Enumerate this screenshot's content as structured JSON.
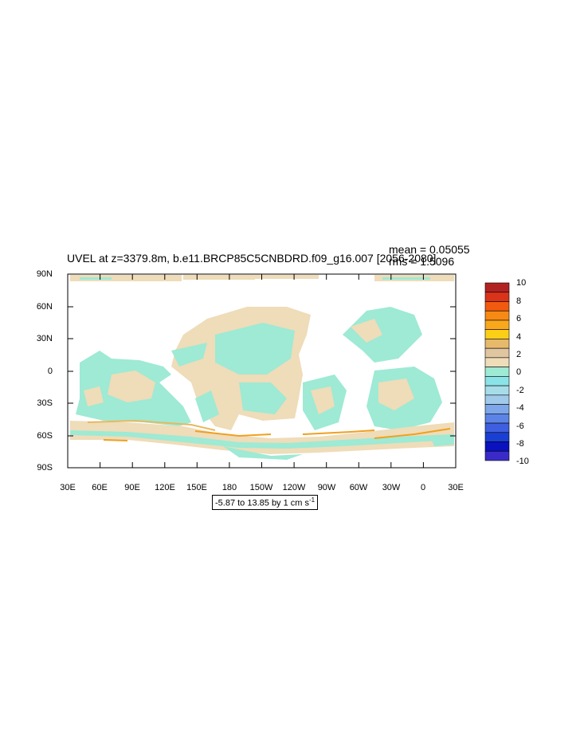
{
  "title": "UVEL at z=3379.8m, b.e11.BRCP85C5CNBDRD.f09_g16.007 [2056-2080]",
  "stats": {
    "mean": "mean = 0.05055",
    "rms": "rms = 1.5096"
  },
  "lat_labels": [
    "90N",
    "60N",
    "30N",
    "0",
    "30S",
    "60S",
    "90S"
  ],
  "lon_labels": [
    "30E",
    "60E",
    "90E",
    "120E",
    "150E",
    "180",
    "150W",
    "120W",
    "90W",
    "60W",
    "30W",
    "0",
    "30E"
  ],
  "range_label": "-5.87 to 13.85 by 1 cm s",
  "range_superscript": "-1",
  "colorbar": {
    "labels": [
      "10",
      "8",
      "6",
      "4",
      "2",
      "0",
      "-2",
      "-4",
      "-6",
      "-8",
      "-10"
    ],
    "colors": [
      "#b22222",
      "#d9331a",
      "#f25b0f",
      "#f78a14",
      "#f9a81c",
      "#fccf17",
      "#e7b96b",
      "#dfc6a1",
      "#efdcb8",
      "#9eead4",
      "#8ae3e6",
      "#a7dde8",
      "#a0c9ea",
      "#7da7e8",
      "#5b84e6",
      "#3e5fe0",
      "#1a3fd4",
      "#0a12bf",
      "#3a2bc8"
    ]
  },
  "map_colors": {
    "land": "#ffffff",
    "neg_small": "#9eead4",
    "pos_small": "#efdcb8",
    "pos_mid": "#e8b860",
    "pos_high": "#f0a020"
  }
}
